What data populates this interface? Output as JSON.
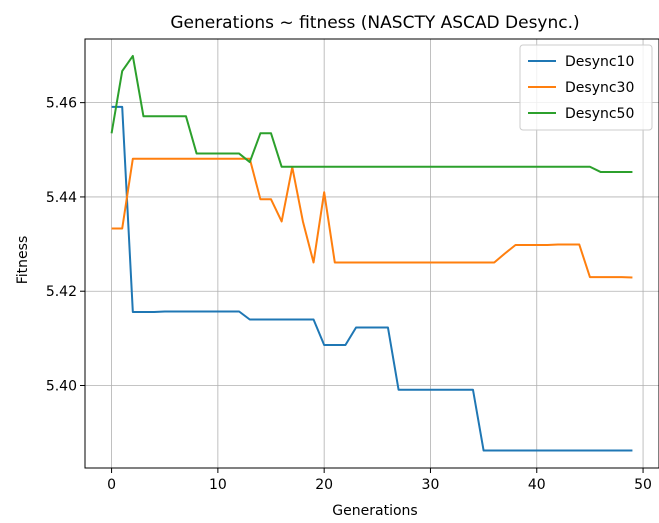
{
  "chart_data": {
    "type": "line",
    "title": "Generations ~ fitness (NASCTY ASCAD Desync.)",
    "xlabel": "Generations",
    "ylabel": "Fitness",
    "xlim": [
      -2.5,
      51.5
    ],
    "ylim": [
      5.3825,
      5.4735
    ],
    "xticks": [
      0,
      10,
      20,
      30,
      40,
      50
    ],
    "yticks": [
      5.4,
      5.42,
      5.44,
      5.46
    ],
    "ytick_labels": [
      "5.40",
      "5.42",
      "5.44",
      "5.46"
    ],
    "grid": true,
    "legend_position": "top-right",
    "x": [
      0,
      1,
      2,
      3,
      4,
      5,
      6,
      7,
      8,
      9,
      10,
      11,
      12,
      13,
      14,
      15,
      16,
      17,
      18,
      19,
      20,
      21,
      22,
      23,
      24,
      25,
      26,
      27,
      28,
      29,
      30,
      31,
      32,
      33,
      34,
      35,
      36,
      37,
      38,
      39,
      40,
      41,
      42,
      43,
      44,
      45,
      46,
      47,
      48,
      49
    ],
    "series": [
      {
        "name": "Desync10",
        "color": "#1f77b4",
        "values": [
          5.4591,
          5.4591,
          5.4156,
          5.4156,
          5.4156,
          5.4157,
          5.4157,
          5.4157,
          5.4157,
          5.4157,
          5.4157,
          5.4157,
          5.4157,
          5.414,
          5.414,
          5.414,
          5.414,
          5.414,
          5.414,
          5.414,
          5.4086,
          5.4086,
          5.4086,
          5.4123,
          5.4123,
          5.4123,
          5.4123,
          5.3991,
          5.3991,
          5.3991,
          5.3991,
          5.3991,
          5.3991,
          5.3991,
          5.3991,
          5.3862,
          5.3862,
          5.3862,
          5.3862,
          5.3862,
          5.3862,
          5.3862,
          5.3862,
          5.3862,
          5.3862,
          5.3862,
          5.3862,
          5.3862,
          5.3862,
          5.3862
        ]
      },
      {
        "name": "Desync30",
        "color": "#ff7f0e",
        "values": [
          5.4333,
          5.4333,
          5.4481,
          5.4481,
          5.4481,
          5.4481,
          5.4481,
          5.4481,
          5.4481,
          5.4481,
          5.4481,
          5.4481,
          5.4481,
          5.4481,
          5.4395,
          5.4395,
          5.4348,
          5.4463,
          5.4348,
          5.4261,
          5.441,
          5.4261,
          5.4261,
          5.4261,
          5.4261,
          5.4261,
          5.4261,
          5.4261,
          5.4261,
          5.4261,
          5.4261,
          5.4261,
          5.4261,
          5.4261,
          5.4261,
          5.4261,
          5.4261,
          5.428,
          5.4298,
          5.4298,
          5.4298,
          5.4298,
          5.4299,
          5.4299,
          5.4299,
          5.423,
          5.423,
          5.423,
          5.423,
          5.4229
        ]
      },
      {
        "name": "Desync50",
        "color": "#2ca02c",
        "values": [
          5.4535,
          5.4667,
          5.4699,
          5.4571,
          5.4571,
          5.4571,
          5.4571,
          5.4571,
          5.4492,
          5.4492,
          5.4492,
          5.4492,
          5.4492,
          5.4474,
          5.4535,
          5.4535,
          5.4464,
          5.4464,
          5.4464,
          5.4464,
          5.4464,
          5.4464,
          5.4464,
          5.4464,
          5.4464,
          5.4464,
          5.4464,
          5.4464,
          5.4464,
          5.4464,
          5.4464,
          5.4464,
          5.4464,
          5.4464,
          5.4464,
          5.4464,
          5.4464,
          5.4464,
          5.4464,
          5.4464,
          5.4464,
          5.4464,
          5.4464,
          5.4464,
          5.4464,
          5.4464,
          5.4453,
          5.4453,
          5.4453,
          5.4453
        ]
      }
    ]
  }
}
